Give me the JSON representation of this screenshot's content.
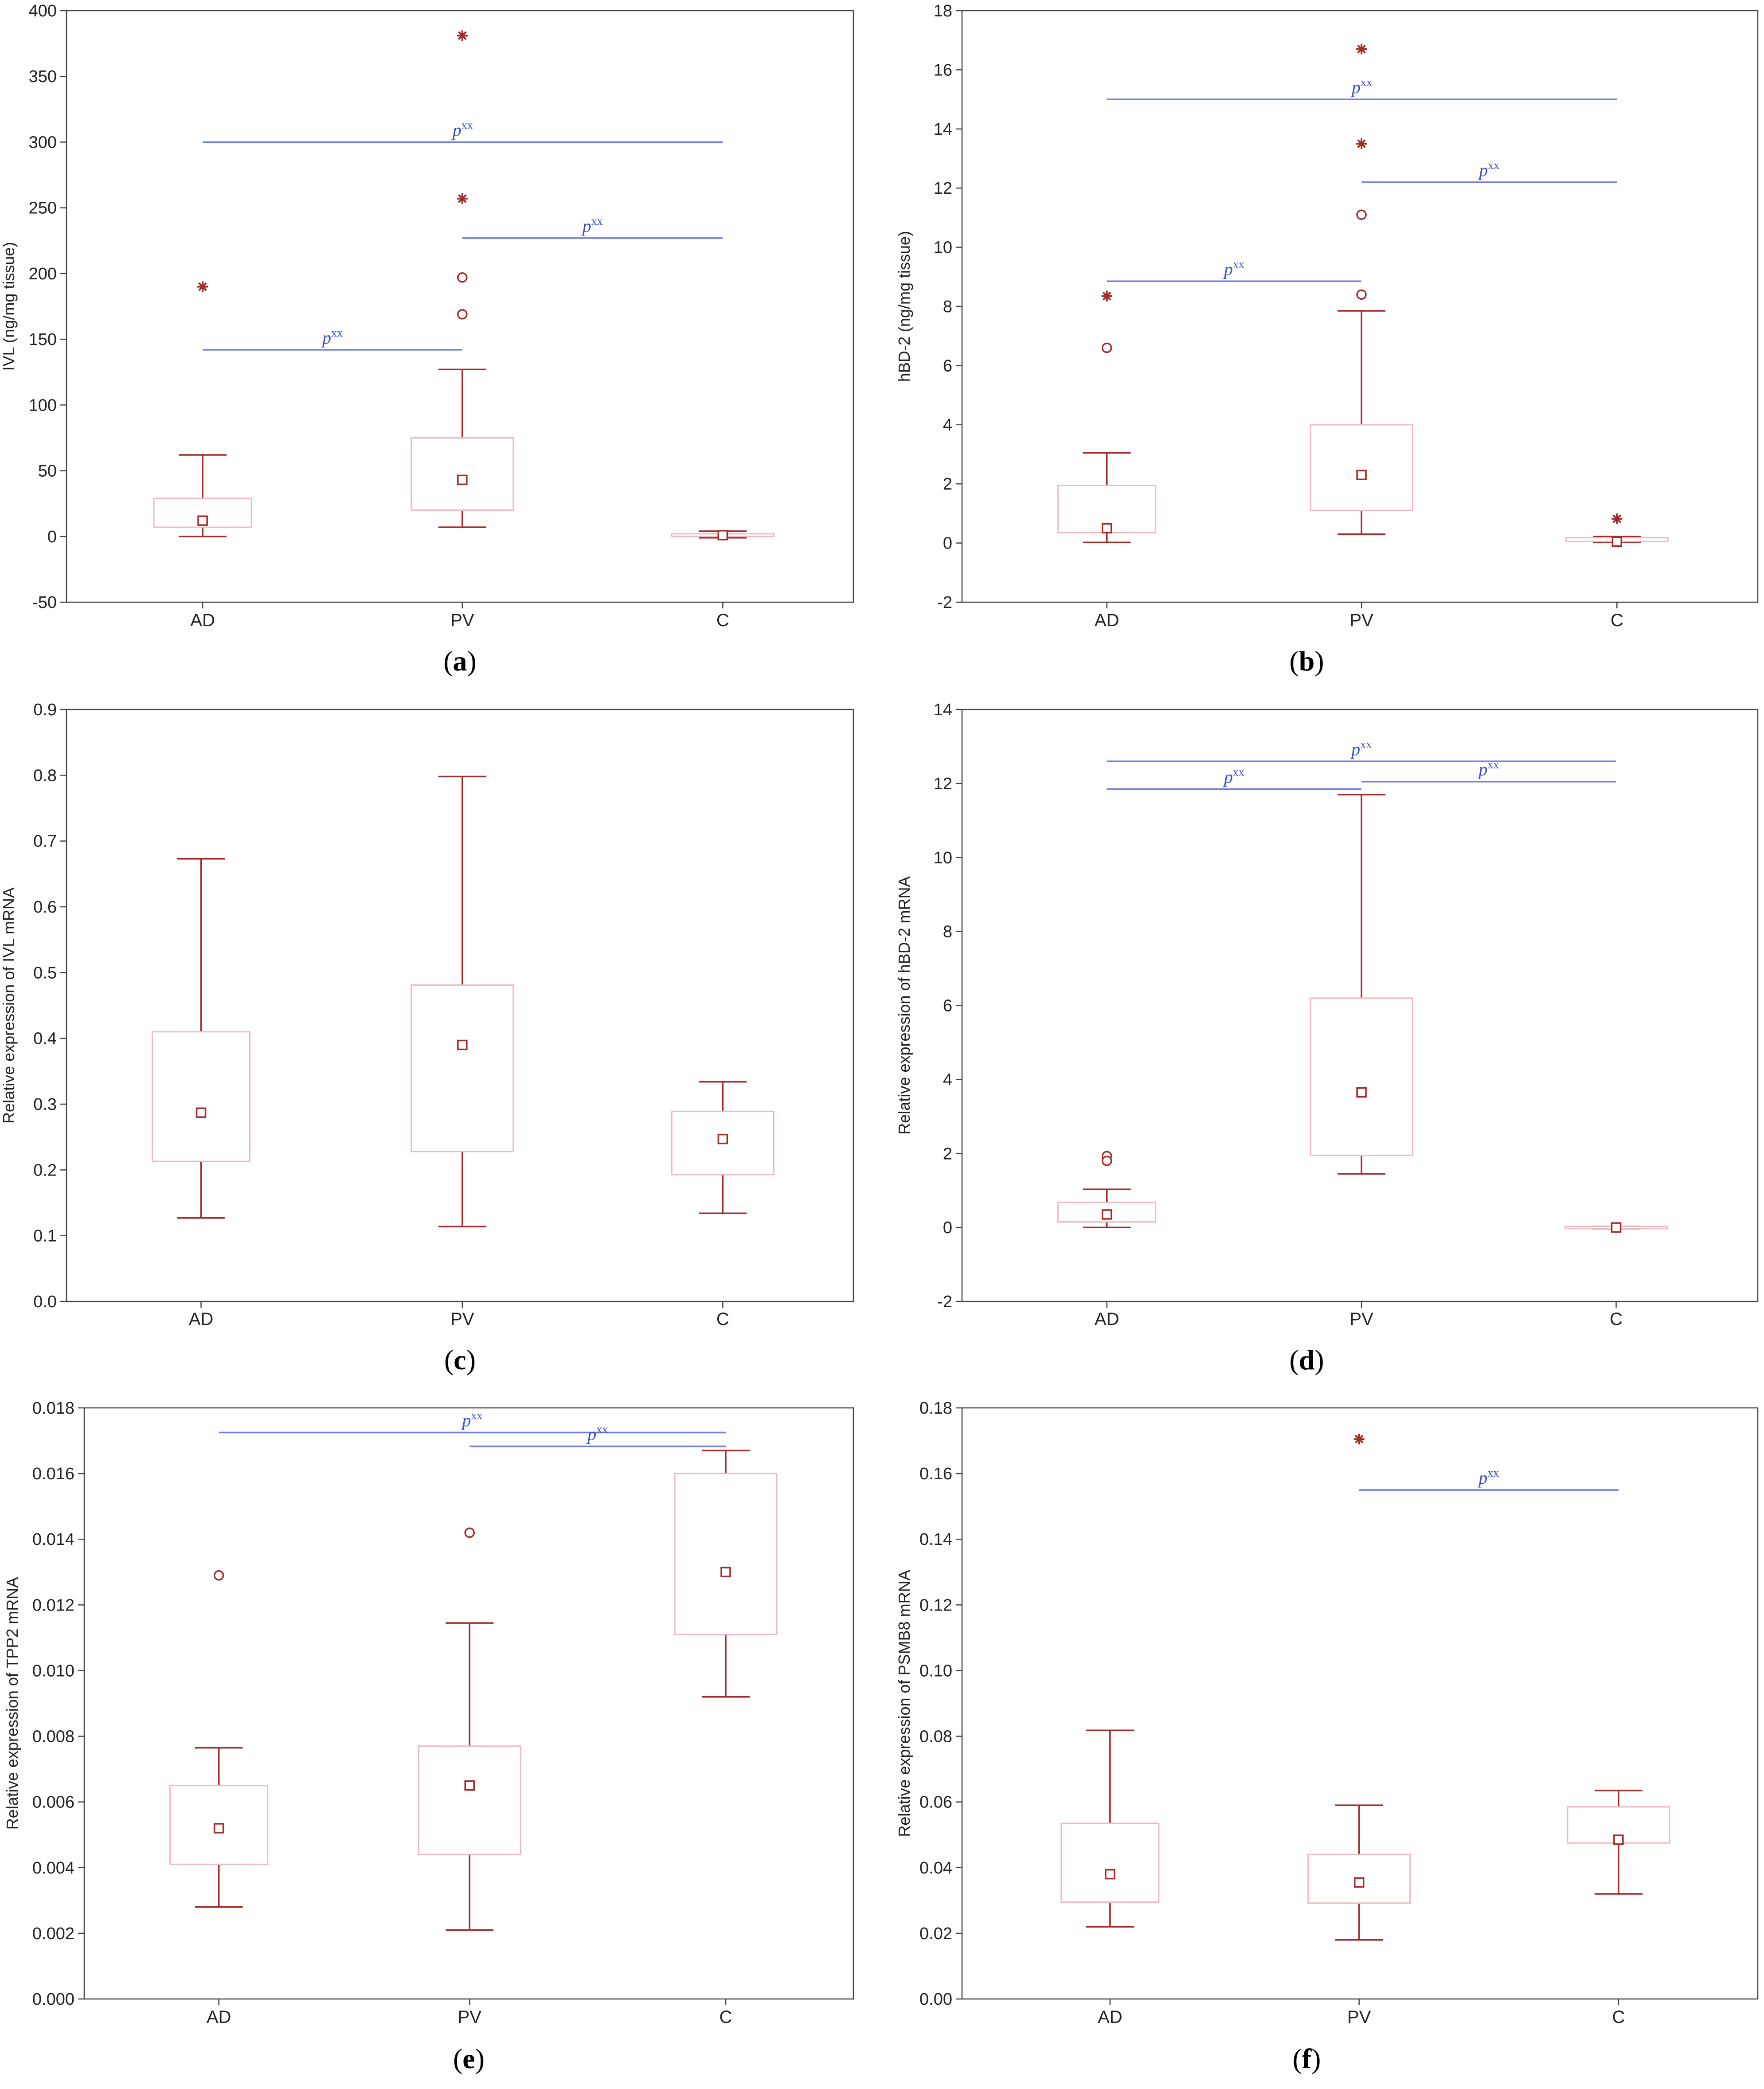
{
  "colors": {
    "box_edge": "#f0b9c0",
    "whisker": "#a52a2a",
    "marker": "#a52a2a",
    "significance": "#6f7fe8",
    "frame": "#444444"
  },
  "chart_data": [
    {
      "id": "a",
      "type": "box",
      "panel_label": "a",
      "ylabel": "IVL (ng/mg tissue)",
      "ylim": [
        -50,
        400
      ],
      "yticks": [
        "-50",
        "0",
        "50",
        "100",
        "150",
        "200",
        "250",
        "300",
        "350",
        "400"
      ],
      "categories": [
        "AD",
        "PV",
        "C"
      ],
      "boxes": [
        {
          "category": "AD",
          "median": 12,
          "q1": 7,
          "q3": 29,
          "min": 0,
          "max": 62,
          "outliers": [],
          "extremes": [
            190
          ]
        },
        {
          "category": "PV",
          "median": 43,
          "q1": 20,
          "q3": 75,
          "min": 7,
          "max": 127,
          "outliers": [
            197,
            169
          ],
          "extremes": [
            381,
            257
          ]
        },
        {
          "category": "C",
          "median": 1,
          "q1": 0,
          "q3": 2,
          "min": -1,
          "max": 4,
          "outliers": [],
          "extremes": []
        }
      ],
      "significance": [
        {
          "from": "AD",
          "to": "C",
          "y": 300,
          "label": "p",
          "sup": "xx"
        },
        {
          "from": "PV",
          "to": "C",
          "y": 227,
          "label": "p",
          "sup": "xx"
        },
        {
          "from": "AD",
          "to": "PV",
          "y": 142,
          "label": "p",
          "sup": "xx"
        }
      ]
    },
    {
      "id": "b",
      "type": "box",
      "panel_label": "b",
      "ylabel": "hBD-2 (ng/mg tissue)",
      "ylim": [
        -2,
        18
      ],
      "yticks": [
        "-2",
        "0",
        "2",
        "4",
        "6",
        "8",
        "10",
        "12",
        "14",
        "16",
        "18"
      ],
      "categories": [
        "AD",
        "PV",
        "C"
      ],
      "boxes": [
        {
          "category": "AD",
          "median": 0.5,
          "q1": 0.35,
          "q3": 1.95,
          "min": 0.02,
          "max": 3.05,
          "outliers": [
            6.6
          ],
          "extremes": [
            8.35
          ]
        },
        {
          "category": "PV",
          "median": 2.3,
          "q1": 1.1,
          "q3": 4.0,
          "min": 0.3,
          "max": 7.85,
          "outliers": [
            11.1,
            8.4
          ],
          "extremes": [
            16.7,
            13.5
          ]
        },
        {
          "category": "C",
          "median": 0.05,
          "q1": 0.05,
          "q3": 0.18,
          "min": 0.02,
          "max": 0.22,
          "outliers": [],
          "extremes": [
            0.82
          ]
        }
      ],
      "significance": [
        {
          "from": "AD",
          "to": "C",
          "y": 15.0,
          "label": "p",
          "sup": "xx"
        },
        {
          "from": "PV",
          "to": "C",
          "y": 12.2,
          "label": "p",
          "sup": "xx"
        },
        {
          "from": "AD",
          "to": "PV",
          "y": 8.85,
          "label": "p",
          "sup": "xx"
        }
      ]
    },
    {
      "id": "c",
      "type": "box",
      "panel_label": "c",
      "ylabel": "Relative expression of IVL mRNA",
      "ylim": [
        0.0,
        0.9
      ],
      "yticks": [
        "0.0",
        "0.1",
        "0.2",
        "0.3",
        "0.4",
        "0.5",
        "0.6",
        "0.7",
        "0.8",
        "0.9"
      ],
      "categories": [
        "AD",
        "PV",
        "C"
      ],
      "boxes": [
        {
          "category": "AD",
          "median": 0.287,
          "q1": 0.213,
          "q3": 0.41,
          "min": 0.127,
          "max": 0.673,
          "outliers": [],
          "extremes": []
        },
        {
          "category": "PV",
          "median": 0.39,
          "q1": 0.228,
          "q3": 0.481,
          "min": 0.114,
          "max": 0.798,
          "outliers": [],
          "extremes": []
        },
        {
          "category": "C",
          "median": 0.247,
          "q1": 0.193,
          "q3": 0.289,
          "min": 0.134,
          "max": 0.334,
          "outliers": [],
          "extremes": []
        }
      ],
      "significance": []
    },
    {
      "id": "d",
      "type": "box",
      "panel_label": "d",
      "ylabel": "Relative expression of hBD-2 mRNA",
      "ylim": [
        -2,
        14
      ],
      "yticks": [
        "-2",
        "0",
        "2",
        "4",
        "6",
        "8",
        "10",
        "12",
        "14"
      ],
      "categories": [
        "AD",
        "PV",
        "C"
      ],
      "boxes": [
        {
          "category": "AD",
          "median": 0.35,
          "q1": 0.15,
          "q3": 0.68,
          "min": 0.0,
          "max": 1.03,
          "outliers": [
            1.93,
            1.8
          ],
          "extremes": []
        },
        {
          "category": "PV",
          "median": 3.65,
          "q1": 1.95,
          "q3": 6.2,
          "min": 1.45,
          "max": 11.7,
          "outliers": [],
          "extremes": []
        },
        {
          "category": "C",
          "median": 0.0,
          "q1": -0.03,
          "q3": 0.03,
          "min": -0.03,
          "max": 0.03,
          "outliers": [],
          "extremes": []
        }
      ],
      "significance": [
        {
          "from": "AD",
          "to": "C",
          "y": 12.6,
          "label": "p",
          "sup": "xx"
        },
        {
          "from": "PV",
          "to": "C",
          "y": 12.05,
          "label": "p",
          "sup": "xx"
        },
        {
          "from": "AD",
          "to": "PV",
          "y": 11.85,
          "label": "p",
          "sup": "xx"
        }
      ]
    },
    {
      "id": "e",
      "type": "box",
      "panel_label": "e",
      "ylabel": "Relative expression of TPP2 mRNA",
      "ylim": [
        0.0,
        0.018
      ],
      "yticks": [
        "0.000",
        "0.002",
        "0.004",
        "0.006",
        "0.008",
        "0.010",
        "0.012",
        "0.014",
        "0.016",
        "0.018"
      ],
      "categories": [
        "AD",
        "PV",
        "C"
      ],
      "boxes": [
        {
          "category": "AD",
          "median": 0.0052,
          "q1": 0.0041,
          "q3": 0.0065,
          "min": 0.0028,
          "max": 0.00765,
          "outliers": [
            0.0129
          ],
          "extremes": []
        },
        {
          "category": "PV",
          "median": 0.0065,
          "q1": 0.0044,
          "q3": 0.0077,
          "min": 0.0021,
          "max": 0.01145,
          "outliers": [
            0.0142
          ],
          "extremes": []
        },
        {
          "category": "C",
          "median": 0.013,
          "q1": 0.0111,
          "q3": 0.016,
          "min": 0.0092,
          "max": 0.0167,
          "outliers": [],
          "extremes": []
        }
      ],
      "significance": [
        {
          "from": "AD",
          "to": "C",
          "y": 0.01725,
          "label": "p",
          "sup": "xx"
        },
        {
          "from": "PV",
          "to": "C",
          "y": 0.01683,
          "label": "p",
          "sup": "xx"
        }
      ]
    },
    {
      "id": "f",
      "type": "box",
      "panel_label": "f",
      "ylabel": "Relative expression of PSMB8 mRNA",
      "ylim": [
        0.0,
        0.18
      ],
      "yticks": [
        "0.00",
        "0.02",
        "0.04",
        "0.06",
        "0.08",
        "0.10",
        "0.12",
        "0.14",
        "0.16",
        "0.18"
      ],
      "categories": [
        "AD",
        "PV",
        "C"
      ],
      "boxes": [
        {
          "category": "AD",
          "median": 0.038,
          "q1": 0.0295,
          "q3": 0.0535,
          "min": 0.022,
          "max": 0.0818,
          "outliers": [],
          "extremes": []
        },
        {
          "category": "PV",
          "median": 0.0355,
          "q1": 0.0292,
          "q3": 0.044,
          "min": 0.018,
          "max": 0.059,
          "outliers": [],
          "extremes": [
            0.1705
          ]
        },
        {
          "category": "C",
          "median": 0.0485,
          "q1": 0.0475,
          "q3": 0.0585,
          "min": 0.032,
          "max": 0.0635,
          "outliers": [],
          "extremes": []
        }
      ],
      "significance": [
        {
          "from": "PV",
          "to": "C",
          "y": 0.155,
          "label": "p",
          "sup": "xx"
        }
      ]
    }
  ]
}
